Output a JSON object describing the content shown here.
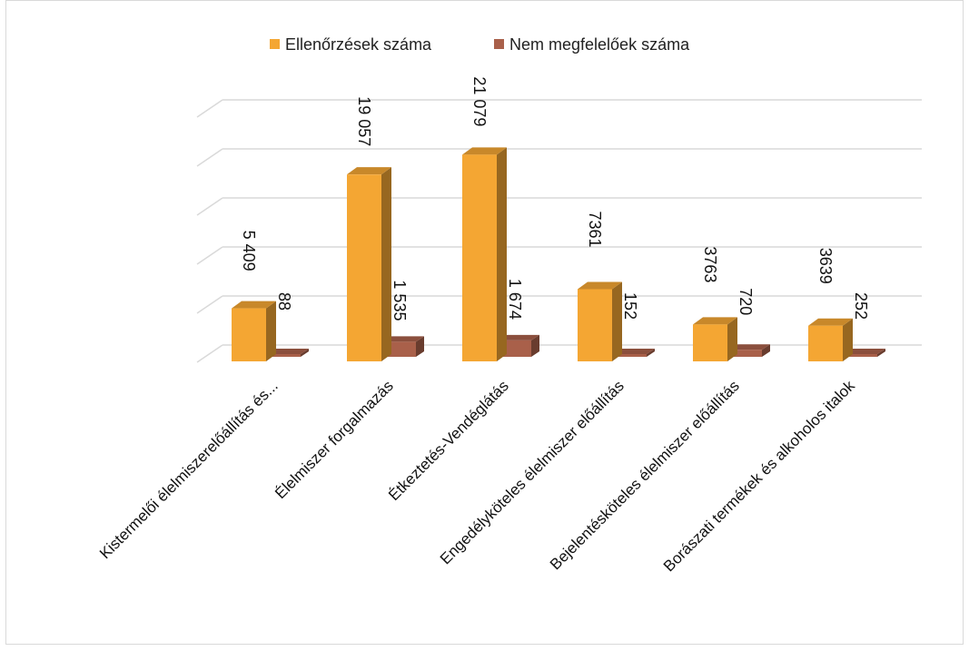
{
  "chart_data": {
    "type": "bar",
    "bar_style": "3d-clustered-column",
    "categories": [
      "Kistermelői élelmiszerelőállítás és...",
      "Élelmiszer forgalmazás",
      "Étkeztetés-Vendéglátás",
      "Engedélyköteles élelmiszer előállítás",
      "Bejelentésköteles élelmiszer előállítás",
      "Borászati termékek és alkoholos italok"
    ],
    "series": [
      {
        "name": "Ellenőrzések száma",
        "values": [
          5409,
          19057,
          21079,
          7361,
          3763,
          3639
        ],
        "labels": [
          "5 409",
          "19 057",
          "21 079",
          "7361",
          "3763",
          "3639"
        ],
        "color": "#F4A633"
      },
      {
        "name": "Nem megfelelőek száma",
        "values": [
          88,
          1535,
          1674,
          152,
          720,
          252
        ],
        "labels": [
          "88",
          "1 535",
          "1 674",
          "152",
          "720",
          "252"
        ],
        "color": "#A9604A"
      }
    ],
    "ylim": [
      0,
      25000
    ],
    "y_tick_step": 5000,
    "y_tick_labels_shown": false,
    "grid": true,
    "legend_position": "top"
  }
}
